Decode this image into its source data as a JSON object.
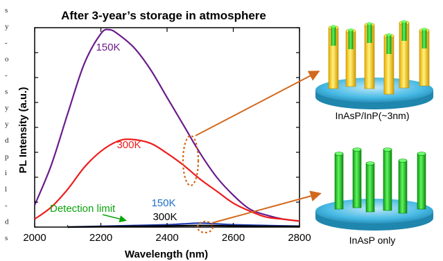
{
  "margin_glyphs": [
    "s",
    "y",
    "-",
    "o",
    "-",
    "s",
    "y",
    "y",
    "d",
    "p",
    "i",
    "l",
    "-",
    "d",
    "s"
  ],
  "colors": {
    "series_150k": "#6a1b8a",
    "series_300k": "#ee1c1c",
    "blue_label": "#1f6fc5",
    "green_label": "#0aa40a",
    "arrow": "#d2691e",
    "highlight": "#d2691e",
    "substrate": "#39b7e6",
    "shell": "#f2c400",
    "core": "#19d01a"
  },
  "chart_data": {
    "type": "line",
    "title": "After 3-year’s storage in atmosphere",
    "xlabel": "Wavelength (nm)",
    "ylabel": "PL Intensity (a.u.)",
    "xlim": [
      2000,
      2800
    ],
    "ylim": [
      0,
      1
    ],
    "xticks": [
      2000,
      2200,
      2400,
      2600,
      2800
    ],
    "grid": false,
    "series": [
      {
        "name": "150K",
        "group": "InAsP/InP(~3nm)",
        "color": "#6a1b8a",
        "x": [
          2000,
          2050,
          2100,
          2150,
          2200,
          2225,
          2250,
          2300,
          2350,
          2400,
          2450,
          2500,
          2550,
          2600,
          2650,
          2700,
          2750,
          2800
        ],
        "y": [
          0.11,
          0.31,
          0.57,
          0.82,
          0.97,
          0.99,
          0.97,
          0.9,
          0.79,
          0.65,
          0.51,
          0.37,
          0.25,
          0.16,
          0.09,
          0.06,
          0.04,
          0.03
        ]
      },
      {
        "name": "300K",
        "group": "InAsP/InP(~3nm)",
        "color": "#ee1c1c",
        "x": [
          2000,
          2050,
          2100,
          2150,
          2200,
          2250,
          2290,
          2350,
          2400,
          2450,
          2500,
          2550,
          2600,
          2650,
          2700,
          2750,
          2800
        ],
        "y": [
          0.04,
          0.1,
          0.19,
          0.3,
          0.38,
          0.43,
          0.44,
          0.42,
          0.37,
          0.31,
          0.24,
          0.18,
          0.12,
          0.08,
          0.05,
          0.04,
          0.03
        ]
      },
      {
        "name": "150K",
        "group": "InAsP only",
        "color": "#1f3fb0",
        "x": [
          2100,
          2200,
          2300,
          2400,
          2450,
          2500,
          2550,
          2600,
          2700,
          2800
        ],
        "y": [
          0.0,
          0.004,
          0.008,
          0.012,
          0.016,
          0.02,
          0.016,
          0.012,
          0.008,
          0.005
        ]
      },
      {
        "name": "300K",
        "group": "InAsP only",
        "color": "#000000",
        "x": [
          2100,
          2200,
          2300,
          2400,
          2500,
          2600,
          2700,
          2800
        ],
        "y": [
          0.0,
          0.002,
          0.004,
          0.006,
          0.008,
          0.006,
          0.004,
          0.003
        ]
      }
    ],
    "annotations": {
      "label_150k_top": "150K",
      "label_300k_top": "300K",
      "label_150k_bottom": "150K",
      "label_300k_bottom": "300K",
      "detection_limit": "Detection limit"
    }
  },
  "insets": {
    "top_caption": "InAsP/InP(~3nm)",
    "bottom_caption": "InAsP only"
  }
}
